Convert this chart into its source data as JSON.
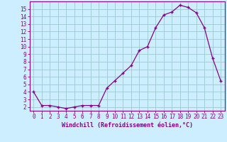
{
  "x": [
    0,
    1,
    2,
    3,
    4,
    5,
    6,
    7,
    8,
    9,
    10,
    11,
    12,
    13,
    14,
    15,
    16,
    17,
    18,
    19,
    20,
    21,
    22,
    23
  ],
  "y": [
    4.0,
    2.2,
    2.2,
    2.0,
    1.8,
    2.0,
    2.2,
    2.2,
    2.2,
    4.5,
    5.5,
    6.5,
    7.5,
    9.5,
    10.0,
    12.5,
    14.2,
    14.6,
    15.5,
    15.2,
    14.5,
    12.5,
    8.5,
    5.5
  ],
  "line_color": "#880088",
  "marker": "+",
  "bg_color": "#cceeff",
  "grid_color": "#99cccc",
  "xlabel": "Windchill (Refroidissement éolien,°C)",
  "xlim": [
    -0.5,
    23.5
  ],
  "ylim": [
    1.5,
    16.0
  ],
  "yticks": [
    2,
    3,
    4,
    5,
    6,
    7,
    8,
    9,
    10,
    11,
    12,
    13,
    14,
    15
  ],
  "xticks": [
    0,
    1,
    2,
    3,
    4,
    5,
    6,
    7,
    8,
    9,
    10,
    11,
    12,
    13,
    14,
    15,
    16,
    17,
    18,
    19,
    20,
    21,
    22,
    23
  ],
  "label_color": "#880088",
  "spine_color": "#880088",
  "font_name": "monospace",
  "tick_fontsize": 5.5,
  "xlabel_fontsize": 6.0
}
